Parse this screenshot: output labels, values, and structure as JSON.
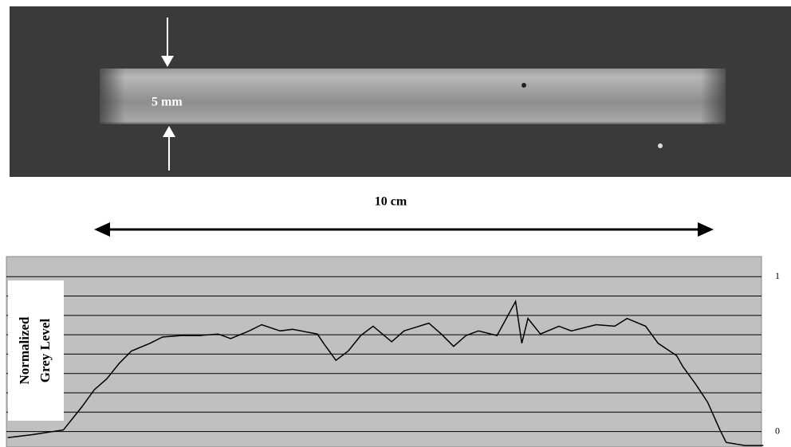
{
  "chart_data": {
    "type": "line",
    "annotations": {
      "thickness": "5 mm",
      "length": "10 cm"
    },
    "ylabel": [
      "Normalized",
      "Grey Level"
    ],
    "x": [
      -1.4,
      -1.0,
      -0.5,
      -0.2,
      0,
      0.2,
      0.4,
      0.6,
      0.9,
      1.1,
      1.4,
      1.7,
      2.0,
      2.2,
      2.5,
      2.7,
      3.0,
      3.2,
      3.6,
      3.7,
      3.9,
      4.1,
      4.3,
      4.5,
      4.8,
      5.0,
      5.4,
      5.6,
      5.8,
      6.0,
      6.2,
      6.5,
      6.8,
      6.9,
      7.0,
      7.2,
      7.5,
      7.7,
      8.1,
      8.4,
      8.6,
      8.9,
      9.1,
      9.4,
      9.5,
      9.7,
      9.9,
      10.1,
      10.2,
      10.5,
      10.8
    ],
    "series": [
      {
        "color": "#000000",
        "values": [
          -0.04,
          -0.02,
          0.01,
          0.16,
          0.27,
          0.34,
          0.44,
          0.52,
          0.57,
          0.61,
          0.62,
          0.62,
          0.63,
          0.6,
          0.65,
          0.69,
          0.65,
          0.66,
          0.63,
          0.57,
          0.46,
          0.52,
          0.62,
          0.68,
          0.58,
          0.65,
          0.7,
          0.63,
          0.55,
          0.62,
          0.65,
          0.62,
          0.84,
          0.57,
          0.73,
          0.63,
          0.68,
          0.65,
          0.69,
          0.68,
          0.73,
          0.68,
          0.57,
          0.49,
          0.42,
          0.31,
          0.19,
          0.01,
          -0.07,
          -0.09,
          -0.09
        ]
      }
    ],
    "xlim": [
      -1.42,
      10.77
    ],
    "ylim": [
      -0.1,
      1.13
    ],
    "yticks": [
      0,
      1
    ],
    "minor_yticks": [
      0.125,
      0.25,
      0.375,
      0.5,
      0.625,
      0.75,
      0.875
    ],
    "grid": true,
    "background": "#c0c0c0"
  }
}
